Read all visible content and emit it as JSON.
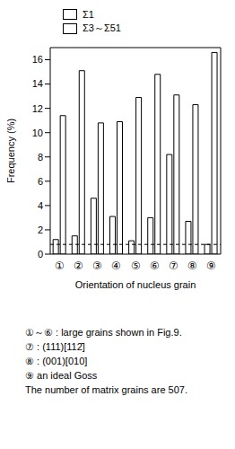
{
  "chart_data": {
    "type": "bar",
    "categories": [
      "①",
      "②",
      "③",
      "④",
      "⑤",
      "⑥",
      "⑦",
      "⑧",
      "⑨"
    ],
    "series": [
      {
        "name": "Σ1",
        "color": "#ffffff",
        "values": [
          1.2,
          1.5,
          4.6,
          3.1,
          1.1,
          3.0,
          8.2,
          2.7,
          0.8
        ]
      },
      {
        "name": "Σ3～Σ51",
        "color": "#ffffff",
        "values": [
          11.4,
          15.1,
          10.8,
          10.9,
          12.9,
          14.8,
          13.1,
          12.3,
          16.6
        ]
      }
    ],
    "x_label": "Orientation of nucleus grain",
    "y_label": "Frequency (%)",
    "ylim": [
      0,
      17
    ],
    "yticks": [
      0,
      2,
      4,
      6,
      8,
      10,
      12,
      14,
      16
    ],
    "reference_line": 0.8,
    "legend": "upper left",
    "notes": [
      "①～⑥ : large grains shown in Fig.9.",
      "⑦ : (111)[112̄]",
      "⑧ : (001)[010]",
      "⑨ an ideal Goss",
      "The number of matrix grains are 507."
    ]
  }
}
